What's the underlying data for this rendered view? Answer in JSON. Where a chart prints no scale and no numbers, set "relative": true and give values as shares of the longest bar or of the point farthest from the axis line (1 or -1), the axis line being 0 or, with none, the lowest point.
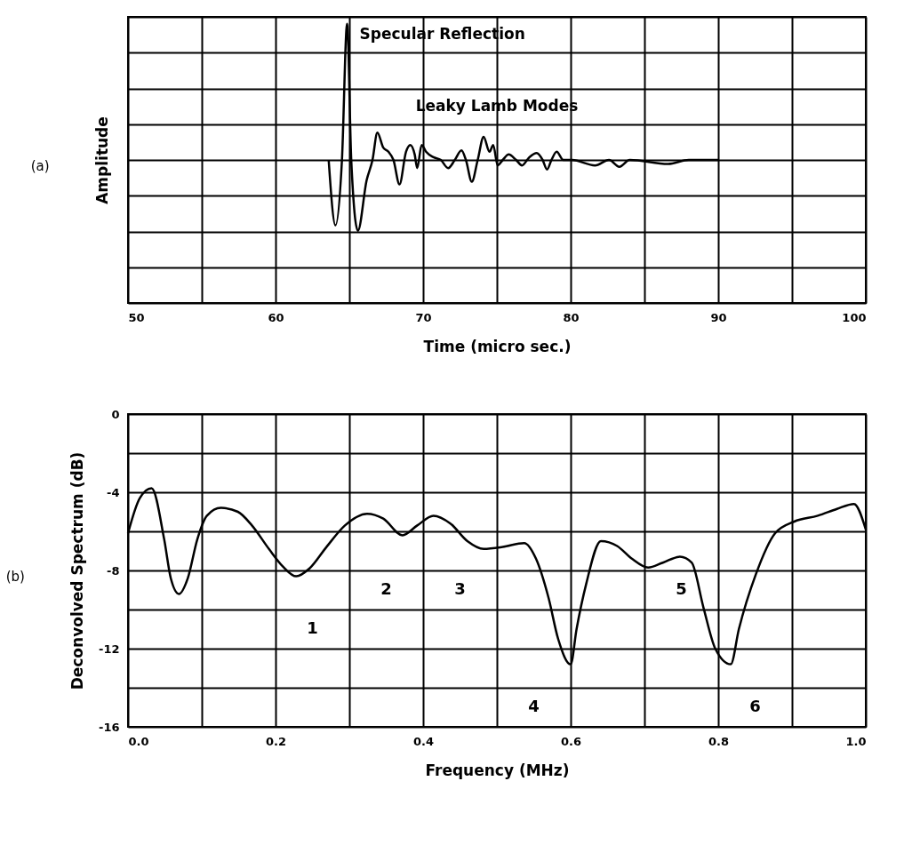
{
  "chart_data": [
    {
      "type": "line",
      "title": "(a)",
      "xlabel": "Time (micro sec.)",
      "ylabel": "Amplitude",
      "relative": true,
      "tick_labels": "x",
      "grid": true,
      "xlim": [
        50,
        100
      ],
      "xticks": [
        50,
        {
          "value": 55,
          "label": null
        },
        60,
        {
          "value": 65,
          "label": null
        },
        70,
        {
          "value": 75,
          "label": null
        },
        80,
        {
          "value": 85,
          "label": null
        },
        90,
        {
          "value": 95,
          "label": null
        },
        100
      ],
      "annotations": [
        {
          "text": "Specular Reflection",
          "x": 64.85,
          "y": 1
        },
        "Leaky Lamb Modes"
      ],
      "series": [
        {
          "color": "#000000",
          "x": [
            63.6,
            64.06,
            64.5,
            64.85,
            65.13,
            65.58,
            66.17,
            66.57,
            66.9,
            67.3,
            67.65,
            67.99,
            68.4,
            68.84,
            69.13,
            69.43,
            69.6,
            69.9,
            70.2,
            70.7,
            71.2,
            71.7,
            72.15,
            72.6,
            72.9,
            73.3,
            73.7,
            74.1,
            74.5,
            74.75,
            75.05,
            75.4,
            75.8,
            76.3,
            76.7,
            77.2,
            77.7,
            78.1,
            78.4,
            78.7,
            79.05,
            79.5,
            80.1,
            81.65,
            82.6,
            83.3,
            84.0,
            86.6,
            88,
            90
          ],
          "values": [
            0,
            -0.48,
            0,
            1,
            0,
            -0.52,
            -0.15,
            0,
            0.2,
            0.09,
            0.06,
            0,
            -0.18,
            0.06,
            0.11,
            0.04,
            -0.06,
            0.11,
            0.06,
            0.02,
            0,
            -0.06,
            0,
            0.07,
            0,
            -0.16,
            0,
            0.17,
            0.06,
            0.11,
            -0.04,
            0,
            0.04,
            0,
            -0.04,
            0.02,
            0.05,
            0,
            -0.07,
            0,
            0.06,
            0,
            0,
            -0.04,
            0,
            -0.05,
            0,
            -0.03,
            0,
            0
          ]
        }
      ]
    },
    {
      "type": "line",
      "title": "(b)",
      "xlabel": "Frequency (MHz)",
      "ylabel": "Deconvolved Spectrum (dB)",
      "grid": true,
      "xlim": [
        0,
        1
      ],
      "xticks": [
        {
          "value": 0,
          "label": "0.0"
        },
        {
          "value": 0.1,
          "label": null
        },
        {
          "value": 0.2,
          "label": "0.2"
        },
        {
          "value": 0.3,
          "label": null
        },
        {
          "value": 0.4,
          "label": "0.4"
        },
        {
          "value": 0.5,
          "label": null
        },
        {
          "value": 0.6,
          "label": "0.6"
        },
        {
          "value": 0.7,
          "label": null
        },
        {
          "value": 0.8,
          "label": "0.8"
        },
        {
          "value": 0.9,
          "label": null
        },
        {
          "value": 1,
          "label": "1.0"
        }
      ],
      "ylim": [
        -16,
        0
      ],
      "yticks": [
        -16,
        {
          "value": -14,
          "label": null
        },
        -12,
        {
          "value": -10,
          "label": null
        },
        -8,
        {
          "value": -6,
          "label": null
        },
        -4,
        {
          "value": -2,
          "label": null
        },
        0
      ],
      "annotations": [
        {
          "text": "1",
          "x": 0.228,
          "y": -8.3
        },
        {
          "text": "2",
          "x": 0.372,
          "y": -6.2
        },
        {
          "text": "3",
          "x": 0.482,
          "y": -6.9
        },
        {
          "text": "4",
          "x": 0.6,
          "y": -12.8
        },
        {
          "text": "5",
          "x": 0.705,
          "y": -7.85
        },
        {
          "text": "6",
          "x": 0.817,
          "y": -12.8
        }
      ],
      "series": [
        {
          "color": "#000000",
          "x": [
            0,
            0.016,
            0.032,
            0.049,
            0.058,
            0.069,
            0.081,
            0.094,
            0.107,
            0.126,
            0.149,
            0.168,
            0.191,
            0.21,
            0.228,
            0.246,
            0.269,
            0.294,
            0.324,
            0.346,
            0.372,
            0.392,
            0.414,
            0.437,
            0.46,
            0.482,
            0.508,
            0.537,
            0.553,
            0.57,
            0.583,
            0.6,
            0.608,
            0.621,
            0.641,
            0.663,
            0.683,
            0.705,
            0.725,
            0.748,
            0.764,
            0.78,
            0.796,
            0.817,
            0.828,
            0.851,
            0.877,
            0.903,
            0.935,
            0.961,
            0.984,
            1
          ],
          "values": [
            -6.1,
            -4.3,
            -3.8,
            -6.4,
            -8.4,
            -9.2,
            -8.4,
            -6.4,
            -5.2,
            -4.8,
            -5.0,
            -5.7,
            -6.9,
            -7.8,
            -8.3,
            -7.9,
            -6.8,
            -5.7,
            -5.1,
            -5.35,
            -6.2,
            -5.7,
            -5.2,
            -5.6,
            -6.5,
            -6.9,
            -6.8,
            -6.6,
            -7.4,
            -9.4,
            -11.5,
            -12.8,
            -11.0,
            -8.7,
            -6.5,
            -6.75,
            -7.4,
            -7.85,
            -7.6,
            -7.3,
            -7.6,
            -9.9,
            -12.0,
            -12.8,
            -11.0,
            -8.2,
            -6.1,
            -5.5,
            -5.2,
            -4.85,
            -4.6,
            -5.9
          ]
        }
      ]
    }
  ]
}
